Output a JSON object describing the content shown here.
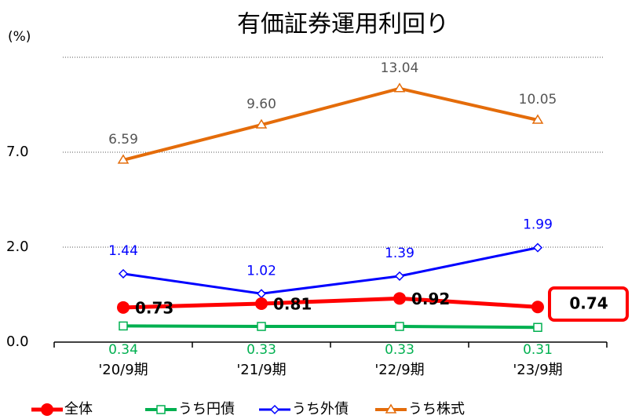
{
  "chart_data": {
    "type": "line",
    "title": "有価証券運用利回り",
    "y_unit": "(%)",
    "categories": [
      "'20/9期",
      "'21/9期",
      "'22/9期",
      "'23/9期"
    ],
    "yscale": "broken",
    "ylim": [
      0,
      16
    ],
    "yticks": [
      {
        "value": 0,
        "label": "0.0"
      },
      {
        "value": 2,
        "label": "2.0"
      },
      {
        "value": 7,
        "label": "7.0"
      }
    ],
    "grid": true,
    "legend": "bottom",
    "series": [
      {
        "name": "全体",
        "color": "#ff0000",
        "marker": "circle",
        "values": [
          0.73,
          0.81,
          0.92,
          0.74
        ],
        "value_labels": [
          "0.73",
          "0.81",
          "0.92",
          "0.74"
        ]
      },
      {
        "name": "うち円債",
        "color": "#00b050",
        "marker": "square",
        "values": [
          0.34,
          0.33,
          0.33,
          0.31
        ],
        "value_labels": [
          "0.34",
          "0.33",
          "0.33",
          "0.31"
        ]
      },
      {
        "name": "うち外債",
        "color": "#0000ff",
        "marker": "diamond",
        "values": [
          1.44,
          1.02,
          1.39,
          1.99
        ],
        "value_labels": [
          "1.44",
          "1.02",
          "1.39",
          "1.99"
        ]
      },
      {
        "name": "うち株式",
        "color": "#e46c0a",
        "marker": "triangle",
        "values": [
          6.59,
          9.6,
          13.04,
          10.05
        ],
        "value_labels": [
          "6.59",
          "9.60",
          "13.04",
          "10.05"
        ]
      }
    ]
  }
}
